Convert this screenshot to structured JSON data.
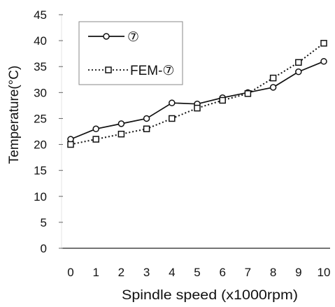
{
  "chart_data": {
    "type": "line",
    "xlabel": "Spindle speed (x1000rpm)",
    "ylabel": "Temperature(°C)",
    "x": [
      0,
      1,
      2,
      3,
      4,
      5,
      6,
      7,
      8,
      9,
      10
    ],
    "xlim": [
      0,
      10
    ],
    "ylim": [
      0,
      45
    ],
    "x_ticks": [
      "0",
      "1",
      "2",
      "3",
      "4",
      "5",
      "6",
      "7",
      "8",
      "9",
      "10"
    ],
    "y_ticks": [
      "0",
      "5",
      "10",
      "15",
      "20",
      "25",
      "30",
      "35",
      "40",
      "45"
    ],
    "grid": false,
    "legend_position": "top-left",
    "series": [
      {
        "name": "⑦",
        "marker": "circle",
        "line_style": "solid",
        "values": [
          21,
          23,
          24,
          25,
          28,
          27.8,
          29,
          30,
          31,
          34,
          36
        ]
      },
      {
        "name": "FEM-⑦",
        "marker": "square",
        "line_style": "dotted",
        "values": [
          20,
          21,
          22,
          23,
          25,
          27,
          28.5,
          29.8,
          32.8,
          35.8,
          39.5
        ]
      }
    ]
  }
}
